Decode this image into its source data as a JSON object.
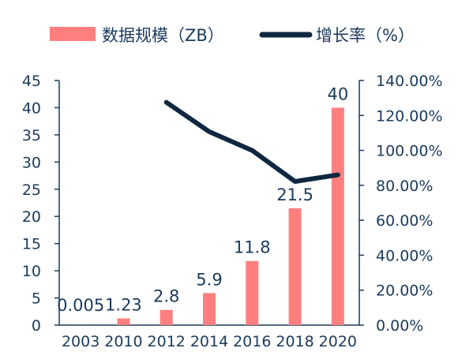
{
  "chart_data": {
    "type": "bar",
    "categories": [
      "2003",
      "2010",
      "2012",
      "2014",
      "2016",
      "2018",
      "2020"
    ],
    "series": [
      {
        "name": "数据规模（ZB）",
        "type": "bar",
        "axis": "left",
        "color": "#ff7f7f",
        "values": [
          0.005,
          1.23,
          2.8,
          5.9,
          11.8,
          21.5,
          40
        ],
        "labels": [
          "0.005",
          "1.23",
          "2.8",
          "5.9",
          "11.8",
          "21.5",
          "40"
        ]
      },
      {
        "name": "增长率（%）",
        "type": "line",
        "axis": "right",
        "color": "#0f2740",
        "values": [
          null,
          null,
          127.5,
          110.7,
          100.0,
          82.2,
          86.0
        ]
      }
    ],
    "y_left": {
      "min": 0,
      "max": 45,
      "ticks": [
        "0",
        "5",
        "10",
        "15",
        "20",
        "25",
        "30",
        "35",
        "40",
        "45"
      ]
    },
    "y_right": {
      "min": 0,
      "max": 140,
      "ticks": [
        "0.00%",
        "20.00%",
        "40.00%",
        "60.00%",
        "80.00%",
        "100.00%",
        "120.00%",
        "140.00%"
      ]
    },
    "legend_position": "top",
    "grid": false
  }
}
